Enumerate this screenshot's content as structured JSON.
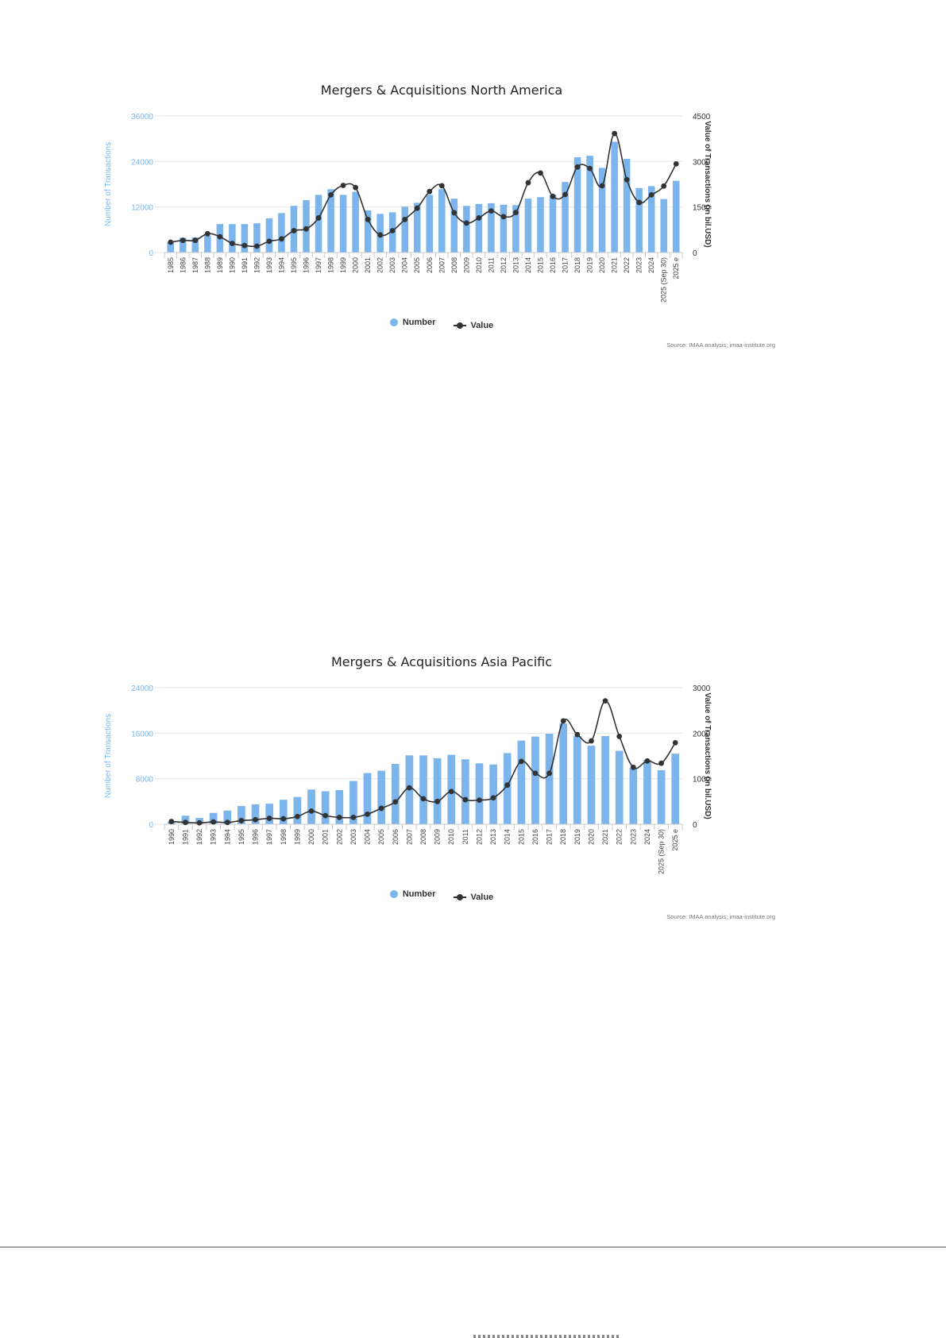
{
  "colors": {
    "bar": "#7cb5ec",
    "line": "#333333",
    "grid": "#e6e6e6",
    "left_axis": "#7cb5ec",
    "right_axis": "#333333"
  },
  "chart_data": [
    {
      "type": "bar",
      "title": "Mergers & Acquisitions North America",
      "ylabel": "Number of Transactions",
      "ylabel_right": "Value of Transactions (in bil.USD)",
      "yticks": [
        "0",
        "12000",
        "24000",
        "36000"
      ],
      "yticks_right": [
        "0",
        "1500",
        "3000",
        "4500"
      ],
      "ylim": [
        0,
        36000
      ],
      "ylim_right": [
        0,
        4500
      ],
      "legend_position": "bottom",
      "source": "Source: IMAA analysis; imaa-institute.org",
      "categories": [
        "1985",
        "1986",
        "1987",
        "1988",
        "1989",
        "1990",
        "1991",
        "1992",
        "1993",
        "1994",
        "1995",
        "1996",
        "1997",
        "1998",
        "1999",
        "2000",
        "2001",
        "2002",
        "2003",
        "2004",
        "2005",
        "2006",
        "2007",
        "2008",
        "2009",
        "2010",
        "2011",
        "2012",
        "2013",
        "2014",
        "2015",
        "2016",
        "2017",
        "2018",
        "2019",
        "2020",
        "2021",
        "2022",
        "2023",
        "2024",
        "2025 (Sep 30)",
        "2025 e"
      ],
      "series": [
        {
          "name": "Number",
          "values": [
            2800,
            3900,
            4000,
            4500,
            7500,
            7500,
            7500,
            7700,
            9000,
            10400,
            12300,
            13800,
            15200,
            16700,
            15200,
            16000,
            11100,
            10200,
            10600,
            12100,
            13100,
            15200,
            16700,
            14200,
            12300,
            12800,
            13000,
            12600,
            12500,
            14200,
            14600,
            15200,
            18600,
            25100,
            25500,
            22300,
            29200,
            24700,
            17000,
            17500,
            14100,
            18900
          ]
        },
        {
          "name": "Value",
          "values": [
            340,
            400,
            400,
            620,
            520,
            300,
            230,
            210,
            370,
            450,
            720,
            780,
            1140,
            1900,
            2210,
            2140,
            1090,
            580,
            720,
            1090,
            1460,
            2010,
            2200,
            1310,
            970,
            1140,
            1370,
            1180,
            1320,
            2300,
            2620,
            1850,
            1910,
            2820,
            2770,
            2200,
            3920,
            2400,
            1650,
            1900,
            2190,
            2920
          ]
        }
      ]
    },
    {
      "type": "bar",
      "title": "Mergers & Acquisitions Asia Pacific",
      "ylabel": "Number of Transactions",
      "ylabel_right": "Value of Transactions (in bil.USD)",
      "yticks": [
        "0",
        "8000",
        "16000",
        "24000"
      ],
      "yticks_right": [
        "0",
        "1000",
        "2000",
        "3000"
      ],
      "ylim": [
        0,
        24000
      ],
      "ylim_right": [
        0,
        3000
      ],
      "legend_position": "bottom",
      "source": "Source: IMAA analysis; imaa-institute.org",
      "categories": [
        "1990",
        "1991",
        "1992",
        "1993",
        "1994",
        "1995",
        "1996",
        "1997",
        "1998",
        "1999",
        "2000",
        "2001",
        "2002",
        "2003",
        "2004",
        "2005",
        "2006",
        "2007",
        "2008",
        "2009",
        "2010",
        "2011",
        "2012",
        "2013",
        "2014",
        "2015",
        "2016",
        "2017",
        "2018",
        "2019",
        "2020",
        "2021",
        "2022",
        "2023",
        "2024",
        "2025 (Sep 30)",
        "2025 e"
      ],
      "series": [
        {
          "name": "Number",
          "values": [
            400,
            1500,
            1100,
            2000,
            2400,
            3200,
            3500,
            3600,
            4300,
            4800,
            6100,
            5800,
            6000,
            7600,
            9000,
            9400,
            10600,
            12100,
            12100,
            11600,
            12200,
            11400,
            10700,
            10500,
            12500,
            14700,
            15400,
            15900,
            17700,
            15500,
            13800,
            15500,
            12900,
            9900,
            11300,
            9500,
            12400
          ]
        },
        {
          "name": "Value",
          "values": [
            60,
            40,
            30,
            50,
            40,
            80,
            100,
            130,
            120,
            170,
            290,
            190,
            150,
            150,
            220,
            350,
            490,
            800,
            560,
            500,
            720,
            540,
            530,
            580,
            860,
            1380,
            1120,
            1120,
            2270,
            1970,
            1830,
            2710,
            1930,
            1250,
            1390,
            1340,
            1790
          ]
        }
      ]
    }
  ]
}
